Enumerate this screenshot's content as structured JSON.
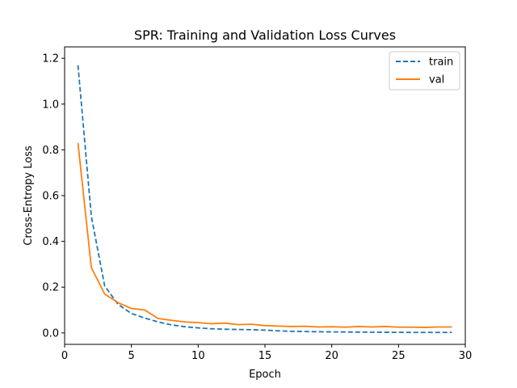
{
  "chart_data": {
    "type": "line",
    "title": "SPR: Training and Validation Loss Curves",
    "xlabel": "Epoch",
    "ylabel": "Cross-Entropy Loss",
    "xlim": [
      0,
      30
    ],
    "ylim": [
      -0.05,
      1.25
    ],
    "xticks": [
      0,
      5,
      10,
      15,
      20,
      25,
      30
    ],
    "yticks": [
      0.0,
      0.2,
      0.4,
      0.6,
      0.8,
      1.0,
      1.2
    ],
    "ytick_labels": [
      "0.0",
      "0.2",
      "0.4",
      "0.6",
      "0.8",
      "1.0",
      "1.2"
    ],
    "grid": false,
    "legend_position": "top-right",
    "x": [
      1,
      2,
      3,
      4,
      5,
      6,
      7,
      8,
      9,
      10,
      11,
      12,
      13,
      14,
      15,
      16,
      17,
      18,
      19,
      20,
      21,
      22,
      23,
      24,
      25,
      26,
      27,
      28,
      29
    ],
    "series": [
      {
        "name": "train",
        "color": "#1f77b4",
        "style": "dashed",
        "values": [
          1.17,
          0.51,
          0.205,
          0.125,
          0.085,
          0.065,
          0.048,
          0.035,
          0.027,
          0.022,
          0.018,
          0.016,
          0.015,
          0.014,
          0.012,
          0.009,
          0.007,
          0.006,
          0.005,
          0.0045,
          0.004,
          0.0035,
          0.003,
          0.0028,
          0.0025,
          0.0022,
          0.002,
          0.002,
          0.002
        ]
      },
      {
        "name": "val",
        "color": "#ff7f0e",
        "style": "solid",
        "values": [
          0.83,
          0.285,
          0.17,
          0.132,
          0.107,
          0.1,
          0.063,
          0.055,
          0.048,
          0.045,
          0.04,
          0.043,
          0.036,
          0.038,
          0.032,
          0.03,
          0.028,
          0.029,
          0.026,
          0.027,
          0.025,
          0.028,
          0.026,
          0.028,
          0.025,
          0.025,
          0.024,
          0.026,
          0.026
        ]
      }
    ]
  }
}
